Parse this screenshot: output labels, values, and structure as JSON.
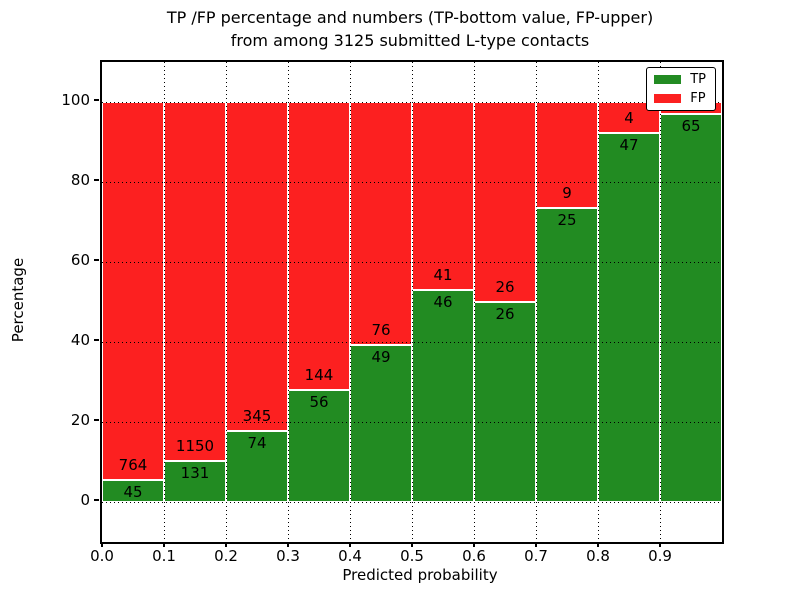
{
  "title": {
    "line1": "TP /FP percentage and numbers (TP-bottom value, FP-upper)",
    "line2": "from among 3125 submitted L-type contacts"
  },
  "chart_data": {
    "type": "bar",
    "stacked": true,
    "title": "TP /FP percentage and numbers (TP-bottom value, FP-upper) from among 3125 submitted L-type contacts",
    "total_submitted": 3125,
    "xlabel": "Predicted probability",
    "ylabel": "Percentage",
    "xlim": [
      0.0,
      1.0
    ],
    "ylim": [
      -10,
      110
    ],
    "bin_width": 0.1,
    "xticks": [
      "0.0",
      "0.1",
      "0.2",
      "0.3",
      "0.4",
      "0.5",
      "0.6",
      "0.7",
      "0.8",
      "0.9"
    ],
    "yticks": [
      "0",
      "20",
      "40",
      "60",
      "80",
      "100"
    ],
    "ytick_values": [
      0,
      20,
      40,
      60,
      80,
      100
    ],
    "grid": true,
    "legend_position": "upper right",
    "series": [
      {
        "name": "TP",
        "color": "#228b22",
        "counts": [
          45,
          131,
          74,
          56,
          49,
          46,
          26,
          25,
          47,
          65
        ]
      },
      {
        "name": "FP",
        "color": "#fc2020",
        "counts": [
          764,
          1150,
          345,
          144,
          76,
          41,
          26,
          9,
          4,
          null
        ]
      }
    ],
    "tp_percent": [
      5.6,
      10.2,
      17.7,
      28.0,
      39.2,
      52.9,
      50.0,
      73.5,
      92.2,
      97.0
    ]
  }
}
